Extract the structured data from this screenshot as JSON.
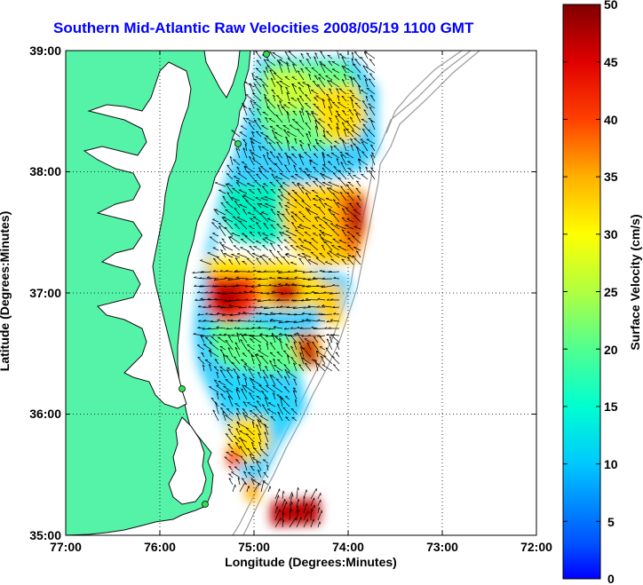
{
  "title": "Southern Mid-Atlantic Raw Velocities 2008/05/19 1100 GMT",
  "xlabel": "Longitude (Degrees:Minutes)",
  "ylabel": "Latitude (Degrees:Minutes)",
  "colorbar_label": "Surface Velocity (cm/s)",
  "x_ticks": [
    "77:00",
    "76:00",
    "75:00",
    "74:00",
    "73:00",
    "72:00"
  ],
  "y_ticks": [
    "39:00",
    "38:00",
    "37:00",
    "36:00",
    "35:00"
  ],
  "colorbar_ticks": [
    "50",
    "45",
    "40",
    "35",
    "30",
    "25",
    "20",
    "15",
    "10",
    "5",
    "0"
  ],
  "chart_data": {
    "type": "heatmap",
    "title": "Southern Mid-Atlantic Raw Velocities 2008/05/19 1100 GMT",
    "xlabel": "Longitude (Degrees:Minutes)",
    "ylabel": "Latitude (Degrees:Minutes)",
    "xlim": [
      -77.0,
      -72.0
    ],
    "ylim": [
      35.0,
      39.0
    ],
    "colorbar": {
      "label": "Surface Velocity (cm/s)",
      "range": [
        0,
        50
      ],
      "colormap": "jet"
    },
    "grid": true,
    "colors": {
      "land": "#55f3a8",
      "title": "#0000ff",
      "coast": "#000000",
      "bathymetry": "#9a9a9a"
    }
  }
}
